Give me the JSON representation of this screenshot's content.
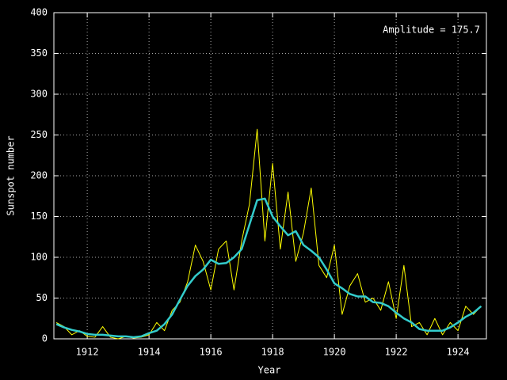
{
  "chart_data": {
    "type": "line",
    "xlabel": "Year",
    "ylabel": "Sunspot number",
    "annotation": "Amplitude = 175.7",
    "x": [
      1911.0,
      1911.25,
      1911.5,
      1911.75,
      1912.0,
      1912.25,
      1912.5,
      1912.75,
      1913.0,
      1913.25,
      1913.5,
      1913.75,
      1914.0,
      1914.25,
      1914.5,
      1914.75,
      1915.0,
      1915.25,
      1915.5,
      1915.75,
      1916.0,
      1916.25,
      1916.5,
      1916.75,
      1917.0,
      1917.25,
      1917.5,
      1917.75,
      1918.0,
      1918.25,
      1918.5,
      1918.75,
      1919.0,
      1919.25,
      1919.5,
      1919.75,
      1920.0,
      1920.25,
      1920.5,
      1920.75,
      1921.0,
      1921.25,
      1921.5,
      1921.75,
      1922.0,
      1922.25,
      1922.5,
      1922.75,
      1923.0,
      1923.25,
      1923.5,
      1923.75,
      1924.0,
      1924.25,
      1924.5,
      1924.75
    ],
    "series": [
      {
        "color": "#ffff00",
        "values": [
          20,
          15,
          5,
          10,
          3,
          2,
          15,
          2,
          0,
          3,
          1,
          2,
          5,
          20,
          10,
          35,
          45,
          70,
          115,
          95,
          60,
          110,
          120,
          60,
          120,
          165,
          257,
          120,
          215,
          110,
          180,
          95,
          130,
          185,
          90,
          75,
          115,
          30,
          65,
          80,
          45,
          50,
          35,
          70,
          25,
          90,
          15,
          20,
          5,
          25,
          5,
          20,
          10,
          40,
          30,
          40
        ]
      },
      {
        "color": "#33cccc",
        "values": [
          18,
          14,
          11,
          9,
          6,
          5,
          5,
          4,
          3,
          3,
          2,
          3,
          7,
          10,
          18,
          30,
          48,
          65,
          77,
          85,
          97,
          92,
          93,
          100,
          110,
          140,
          170,
          172,
          150,
          138,
          127,
          132,
          115,
          108,
          100,
          85,
          68,
          62,
          55,
          52,
          52,
          45,
          44,
          40,
          32,
          25,
          20,
          12,
          10,
          10,
          10,
          14,
          20,
          27,
          32,
          40
        ]
      }
    ],
    "xlim": [
      1910.92,
      1924.92
    ],
    "ylim": [
      0,
      400
    ],
    "xticks": [
      1912,
      1914,
      1916,
      1918,
      1920,
      1922,
      1924
    ],
    "yticks": [
      0,
      50,
      100,
      150,
      200,
      250,
      300,
      350,
      400
    ],
    "grid": true
  }
}
